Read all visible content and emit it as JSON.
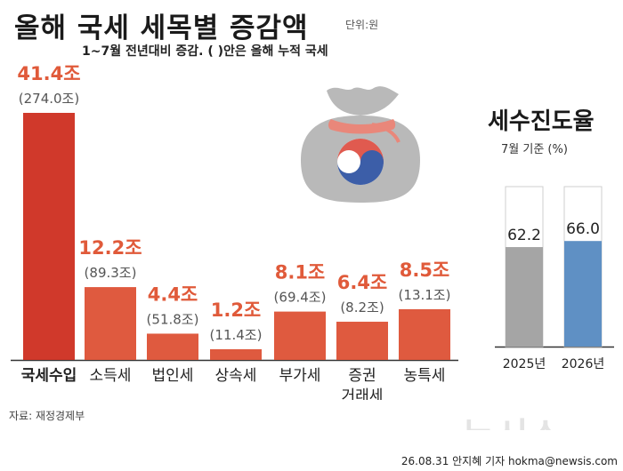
{
  "title": "올해 국세 세목별 증감액",
  "unit": "단위:원",
  "subtitle": "1~7월 전년대비 증감. ( )안은 올해 누적 국세",
  "chart_data": [
    {
      "type": "bar",
      "categories": [
        "국세수입",
        "소득세",
        "법인세",
        "상속세",
        "부가세",
        "증권\n거래세",
        "농특세"
      ],
      "values": [
        41.4,
        12.2,
        4.4,
        1.2,
        8.1,
        6.4,
        8.5
      ],
      "value_labels": [
        "41.4조",
        "12.2조",
        "4.4조",
        "1.2조",
        "8.1조",
        "6.4조",
        "8.5조"
      ],
      "cumulative_labels": [
        "(274.0조)",
        "(89.3조)",
        "(51.8조)",
        "(11.4조)",
        "(69.4조)",
        "(8.2조)",
        "(13.1조)"
      ],
      "colors": {
        "first": "#d0392b",
        "others": "#df5a3f",
        "value_text": "#e05a3a",
        "cumulative_text": "#555555"
      }
    },
    {
      "type": "bar",
      "title": "세수진도율",
      "subtitle": "7월 기준 (%)",
      "categories": [
        "2025년",
        "2026년"
      ],
      "values": [
        62.2,
        66.0
      ],
      "value_labels": [
        "62.2",
        "66.0"
      ],
      "ylim": [
        0,
        100
      ],
      "colors": {
        "2025년": "#a5a5a5",
        "2026년": "#5f90c4",
        "remainder": "#ffffff"
      }
    }
  ],
  "source": "자료: 재정경제부",
  "logo": "뉴시스",
  "credit": "26.08.31 안지혜 기자 hokma@newsis.com"
}
